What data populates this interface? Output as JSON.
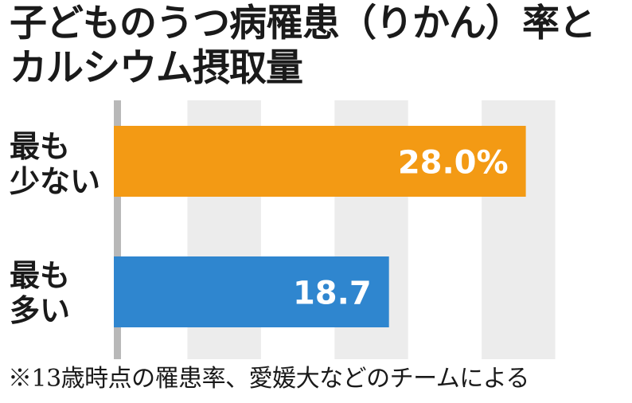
{
  "chart_data": {
    "type": "bar",
    "orientation": "horizontal",
    "title_lines": [
      "子どものうつ病罹患（りかん）率と",
      "カルシウム摂取量"
    ],
    "categories": [
      {
        "lines": [
          "最も",
          "少ない"
        ]
      },
      {
        "lines": [
          "最も",
          "多い"
        ]
      }
    ],
    "values": [
      28.0,
      18.7
    ],
    "value_labels": [
      "28.0%",
      "18.7"
    ],
    "xlim": [
      0,
      35
    ],
    "grid": "vertical bands",
    "colors": {
      "bars": [
        "#f39a14",
        "#2f86cf"
      ],
      "band": "#ececec",
      "axis": "#b8b8b8"
    },
    "note": "※13歳時点の罹患率、愛媛大などのチームによる"
  }
}
